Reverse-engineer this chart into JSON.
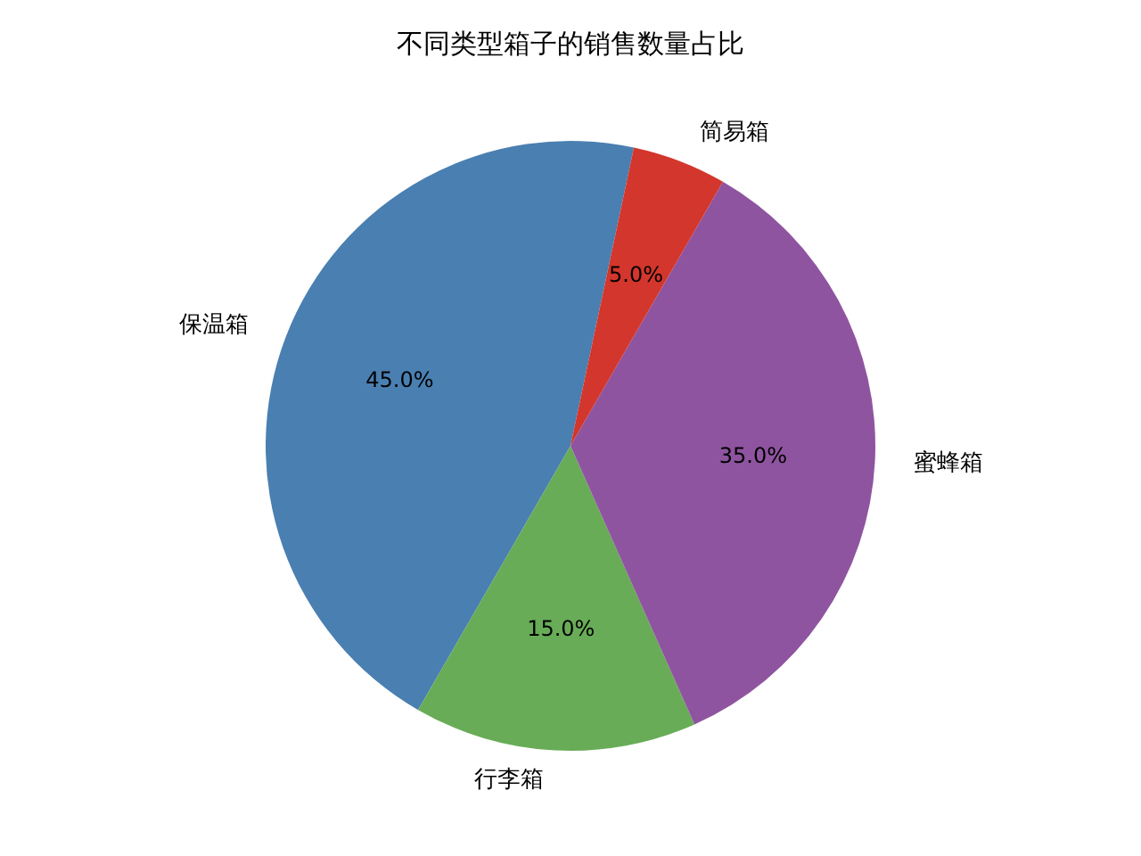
{
  "chart_data": {
    "type": "pie",
    "title": "不同类型箱子的销售数量占比",
    "categories": [
      "保温箱",
      "行李箱",
      "蜜蜂箱",
      "简易箱"
    ],
    "values": [
      45,
      15,
      35,
      5
    ],
    "value_labels": [
      "45.0%",
      "15.0%",
      "35.0%",
      "5.0%"
    ],
    "colors": [
      "#4a7fb1",
      "#68ac57",
      "#8f54a0",
      "#d3362c"
    ]
  }
}
